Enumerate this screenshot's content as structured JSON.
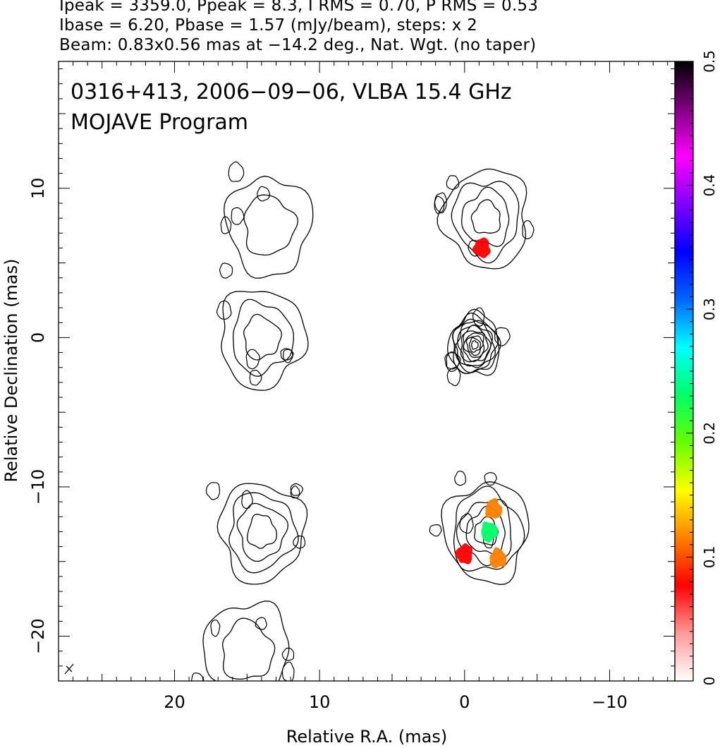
{
  "header": {
    "line1": "Ipeak = 3359.0, Ppeak = 8.3, I RMS = 0.70, P RMS = 0.53",
    "line2": "Ibase = 6.20, Pbase = 1.57 (mJy/beam), steps: x 2",
    "line3": "Beam: 0.83x0.56 mas at −14.2 deg., Nat. Wgt. (no taper)"
  },
  "chart_data": {
    "type": "heatmap",
    "title": "0316+413, 2006−09−06, VLBA 15.4 GHz",
    "subtitle": "MOJAVE Program",
    "xlabel": "Relative R.A. (mas)",
    "ylabel": "Relative Declination (mas)",
    "xlim": [
      28,
      -14.5
    ],
    "ylim": [
      -23,
      18.5
    ],
    "x_ticks": [
      20,
      10,
      0,
      -10
    ],
    "x_tick_labels": [
      "20",
      "10",
      "0",
      "−10"
    ],
    "y_ticks": [
      10,
      0,
      -10,
      -20
    ],
    "y_tick_labels": [
      "10",
      "0",
      "−10",
      "−20"
    ],
    "colorbar": {
      "range": [
        0,
        0.5
      ],
      "ticks": [
        0,
        0.1,
        0.2,
        0.3,
        0.4,
        0.5
      ],
      "tick_labels": [
        "0",
        "0.1",
        "0.2",
        "0.3",
        "0.4",
        "0.5"
      ],
      "colors": [
        "#ffffff",
        "#ff9999",
        "#ff0000",
        "#ff8000",
        "#ffff00",
        "#66ff00",
        "#00ff66",
        "#00ffff",
        "#0066ff",
        "#0000ff",
        "#8000ff",
        "#ff00ff",
        "#800080",
        "#000000"
      ]
    },
    "panels": [
      {
        "name": "left",
        "components": [
          {
            "ra": 13.5,
            "dec": 7.5,
            "levels": 2
          },
          {
            "ra": 14.0,
            "dec": 0.0,
            "levels": 3
          },
          {
            "ra": 14.0,
            "dec": -13.0,
            "levels": 4
          },
          {
            "ra": 15.0,
            "dec": -21.0,
            "levels": 2
          }
        ]
      },
      {
        "name": "right",
        "components": [
          {
            "ra": -1.5,
            "dec": 8.0,
            "levels": 4
          },
          {
            "ra": -0.7,
            "dec": -0.5,
            "levels": 11
          },
          {
            "ra": -1.5,
            "dec": -13.0,
            "levels": 5
          }
        ],
        "polarized_patches": [
          {
            "ra": -1.2,
            "dec": 6.0,
            "value": 0.05
          },
          {
            "ra": 0.0,
            "dec": -14.5,
            "value": 0.05
          },
          {
            "ra": -2.0,
            "dec": -11.5,
            "value": 0.06
          },
          {
            "ra": -2.3,
            "dec": -14.8,
            "value": 0.08
          },
          {
            "ra": -1.7,
            "dec": -13.0,
            "value": 0.2
          }
        ]
      }
    ]
  }
}
